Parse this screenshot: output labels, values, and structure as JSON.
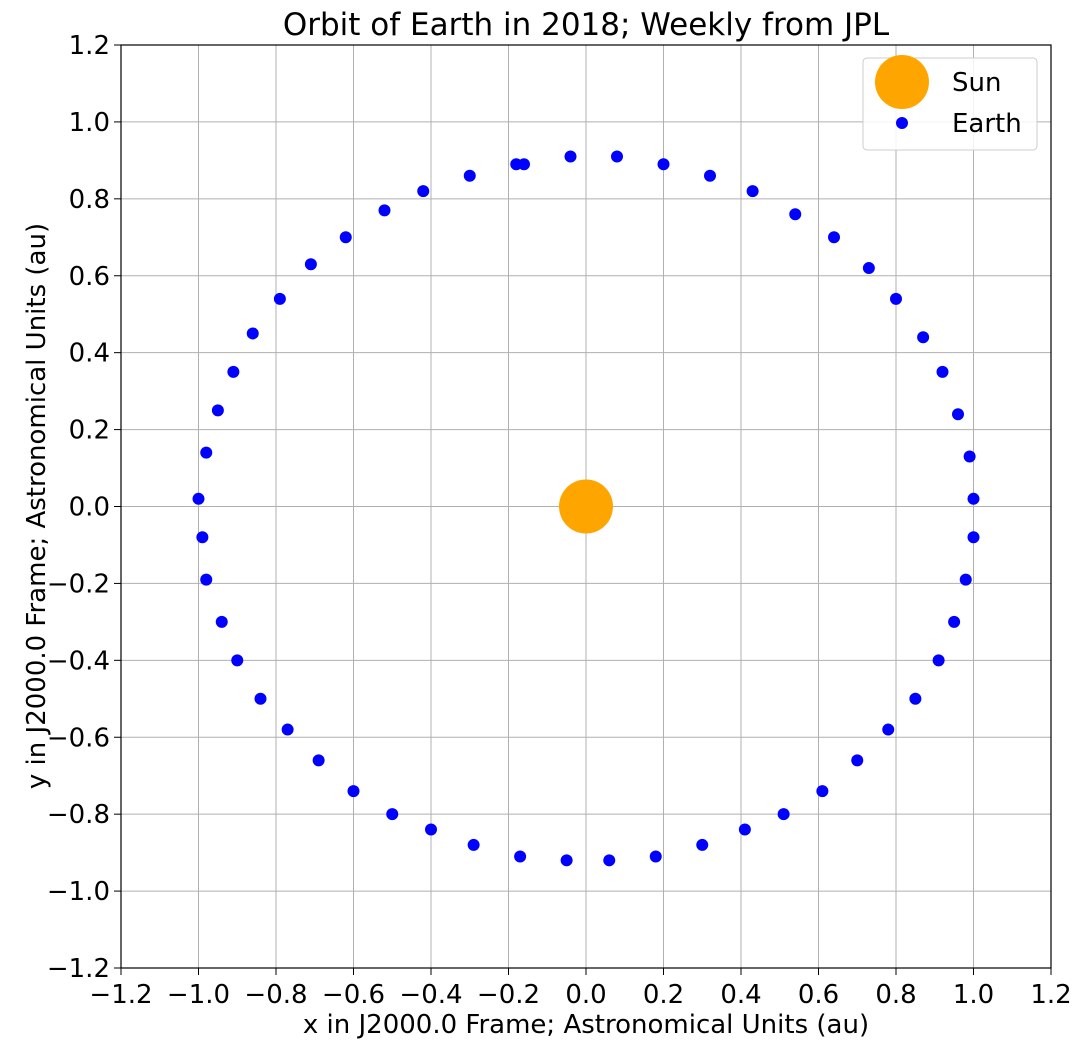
{
  "chart_data": {
    "type": "scatter",
    "title": "Orbit of Earth in 2018; Weekly from JPL",
    "xlabel": "x in J2000.0 Frame; Astronomical Units (au)",
    "ylabel": "y in J2000.0 Frame; Astronomical Units (au)",
    "xlim": [
      -1.2,
      1.2
    ],
    "ylim": [
      -1.2,
      1.2
    ],
    "xticks": [
      "−1.2",
      "−1.0",
      "−0.8",
      "−0.6",
      "−0.4",
      "−0.2",
      "0.0",
      "0.2",
      "0.4",
      "0.6",
      "0.8",
      "1.0",
      "1.2"
    ],
    "yticks": [
      "−1.2",
      "−1.0",
      "−0.8",
      "−0.6",
      "−0.4",
      "−0.2",
      "0.0",
      "0.2",
      "0.4",
      "0.6",
      "0.8",
      "1.0",
      "1.2"
    ],
    "grid": true,
    "legend_position": "top-right",
    "series": [
      {
        "name": "Sun",
        "color": "#ffa500",
        "marker": "large-circle",
        "points": [
          [
            0.0,
            0.0
          ]
        ]
      },
      {
        "name": "Earth",
        "color": "#0000ff",
        "marker": "circle",
        "points": [
          [
            -0.18,
            0.89
          ],
          [
            -0.16,
            0.89
          ],
          [
            -0.04,
            0.91
          ],
          [
            0.08,
            0.91
          ],
          [
            0.2,
            0.89
          ],
          [
            0.32,
            0.86
          ],
          [
            0.43,
            0.82
          ],
          [
            0.54,
            0.76
          ],
          [
            0.64,
            0.7
          ],
          [
            0.73,
            0.62
          ],
          [
            0.8,
            0.54
          ],
          [
            0.87,
            0.44
          ],
          [
            0.92,
            0.35
          ],
          [
            0.96,
            0.24
          ],
          [
            0.99,
            0.13
          ],
          [
            1.0,
            0.02
          ],
          [
            1.0,
            -0.08
          ],
          [
            0.98,
            -0.19
          ],
          [
            0.95,
            -0.3
          ],
          [
            0.91,
            -0.4
          ],
          [
            0.85,
            -0.5
          ],
          [
            0.78,
            -0.58
          ],
          [
            0.7,
            -0.66
          ],
          [
            0.61,
            -0.74
          ],
          [
            0.51,
            -0.8
          ],
          [
            0.41,
            -0.84
          ],
          [
            0.3,
            -0.88
          ],
          [
            0.18,
            -0.91
          ],
          [
            0.06,
            -0.92
          ],
          [
            -0.05,
            -0.92
          ],
          [
            -0.17,
            -0.91
          ],
          [
            -0.29,
            -0.88
          ],
          [
            -0.4,
            -0.84
          ],
          [
            -0.5,
            -0.8
          ],
          [
            -0.6,
            -0.74
          ],
          [
            -0.69,
            -0.66
          ],
          [
            -0.77,
            -0.58
          ],
          [
            -0.84,
            -0.5
          ],
          [
            -0.9,
            -0.4
          ],
          [
            -0.94,
            -0.3
          ],
          [
            -0.98,
            -0.19
          ],
          [
            -0.99,
            -0.08
          ],
          [
            -1.0,
            0.02
          ],
          [
            -0.98,
            0.14
          ],
          [
            -0.95,
            0.25
          ],
          [
            -0.91,
            0.35
          ],
          [
            -0.86,
            0.45
          ],
          [
            -0.79,
            0.54
          ],
          [
            -0.71,
            0.63
          ],
          [
            -0.62,
            0.7
          ],
          [
            -0.52,
            0.77
          ],
          [
            -0.42,
            0.82
          ],
          [
            -0.3,
            0.86
          ]
        ]
      }
    ]
  }
}
